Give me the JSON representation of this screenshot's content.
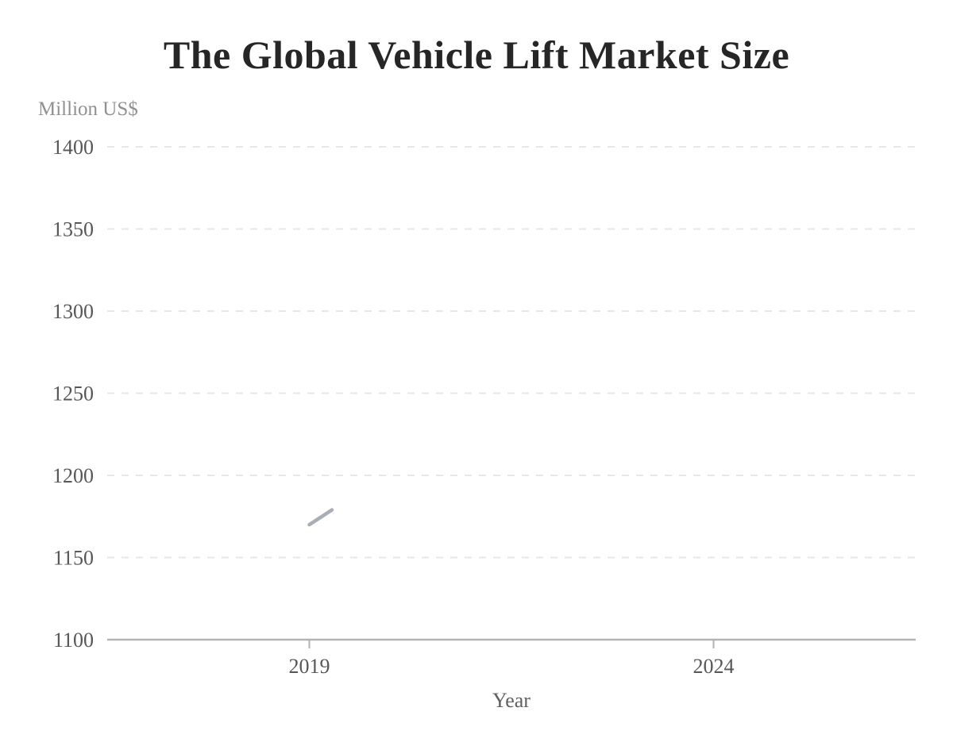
{
  "chart_data": {
    "type": "line",
    "title": "The Global Vehicle Lift Market Size",
    "ylabel": "Million US$",
    "xlabel": "Year",
    "ylim": [
      1100,
      1400
    ],
    "yticks": [
      1100,
      1150,
      1200,
      1250,
      1300,
      1350,
      1400
    ],
    "xlim": [
      2016.5,
      2026.5
    ],
    "xticks": [
      2019,
      2024
    ],
    "grid": "horizontal-dashed",
    "legend": "none",
    "series": [
      {
        "name": "Global vehicle lift market size",
        "color": "#a7aeb8",
        "points": [
          {
            "x": 2019.0,
            "y": 1170
          },
          {
            "x": 2019.28,
            "y": 1179
          }
        ],
        "note": "only a short initial line segment near (2019, ~1170-1179) is rendered"
      }
    ],
    "colors": {
      "title": "#262626",
      "tick_label": "#575757",
      "axis_title": "#606060",
      "unit_label": "#909090",
      "gridline": "#e7e7e7",
      "axis_line": "#b3b3b3",
      "background": "#ffffff"
    }
  }
}
